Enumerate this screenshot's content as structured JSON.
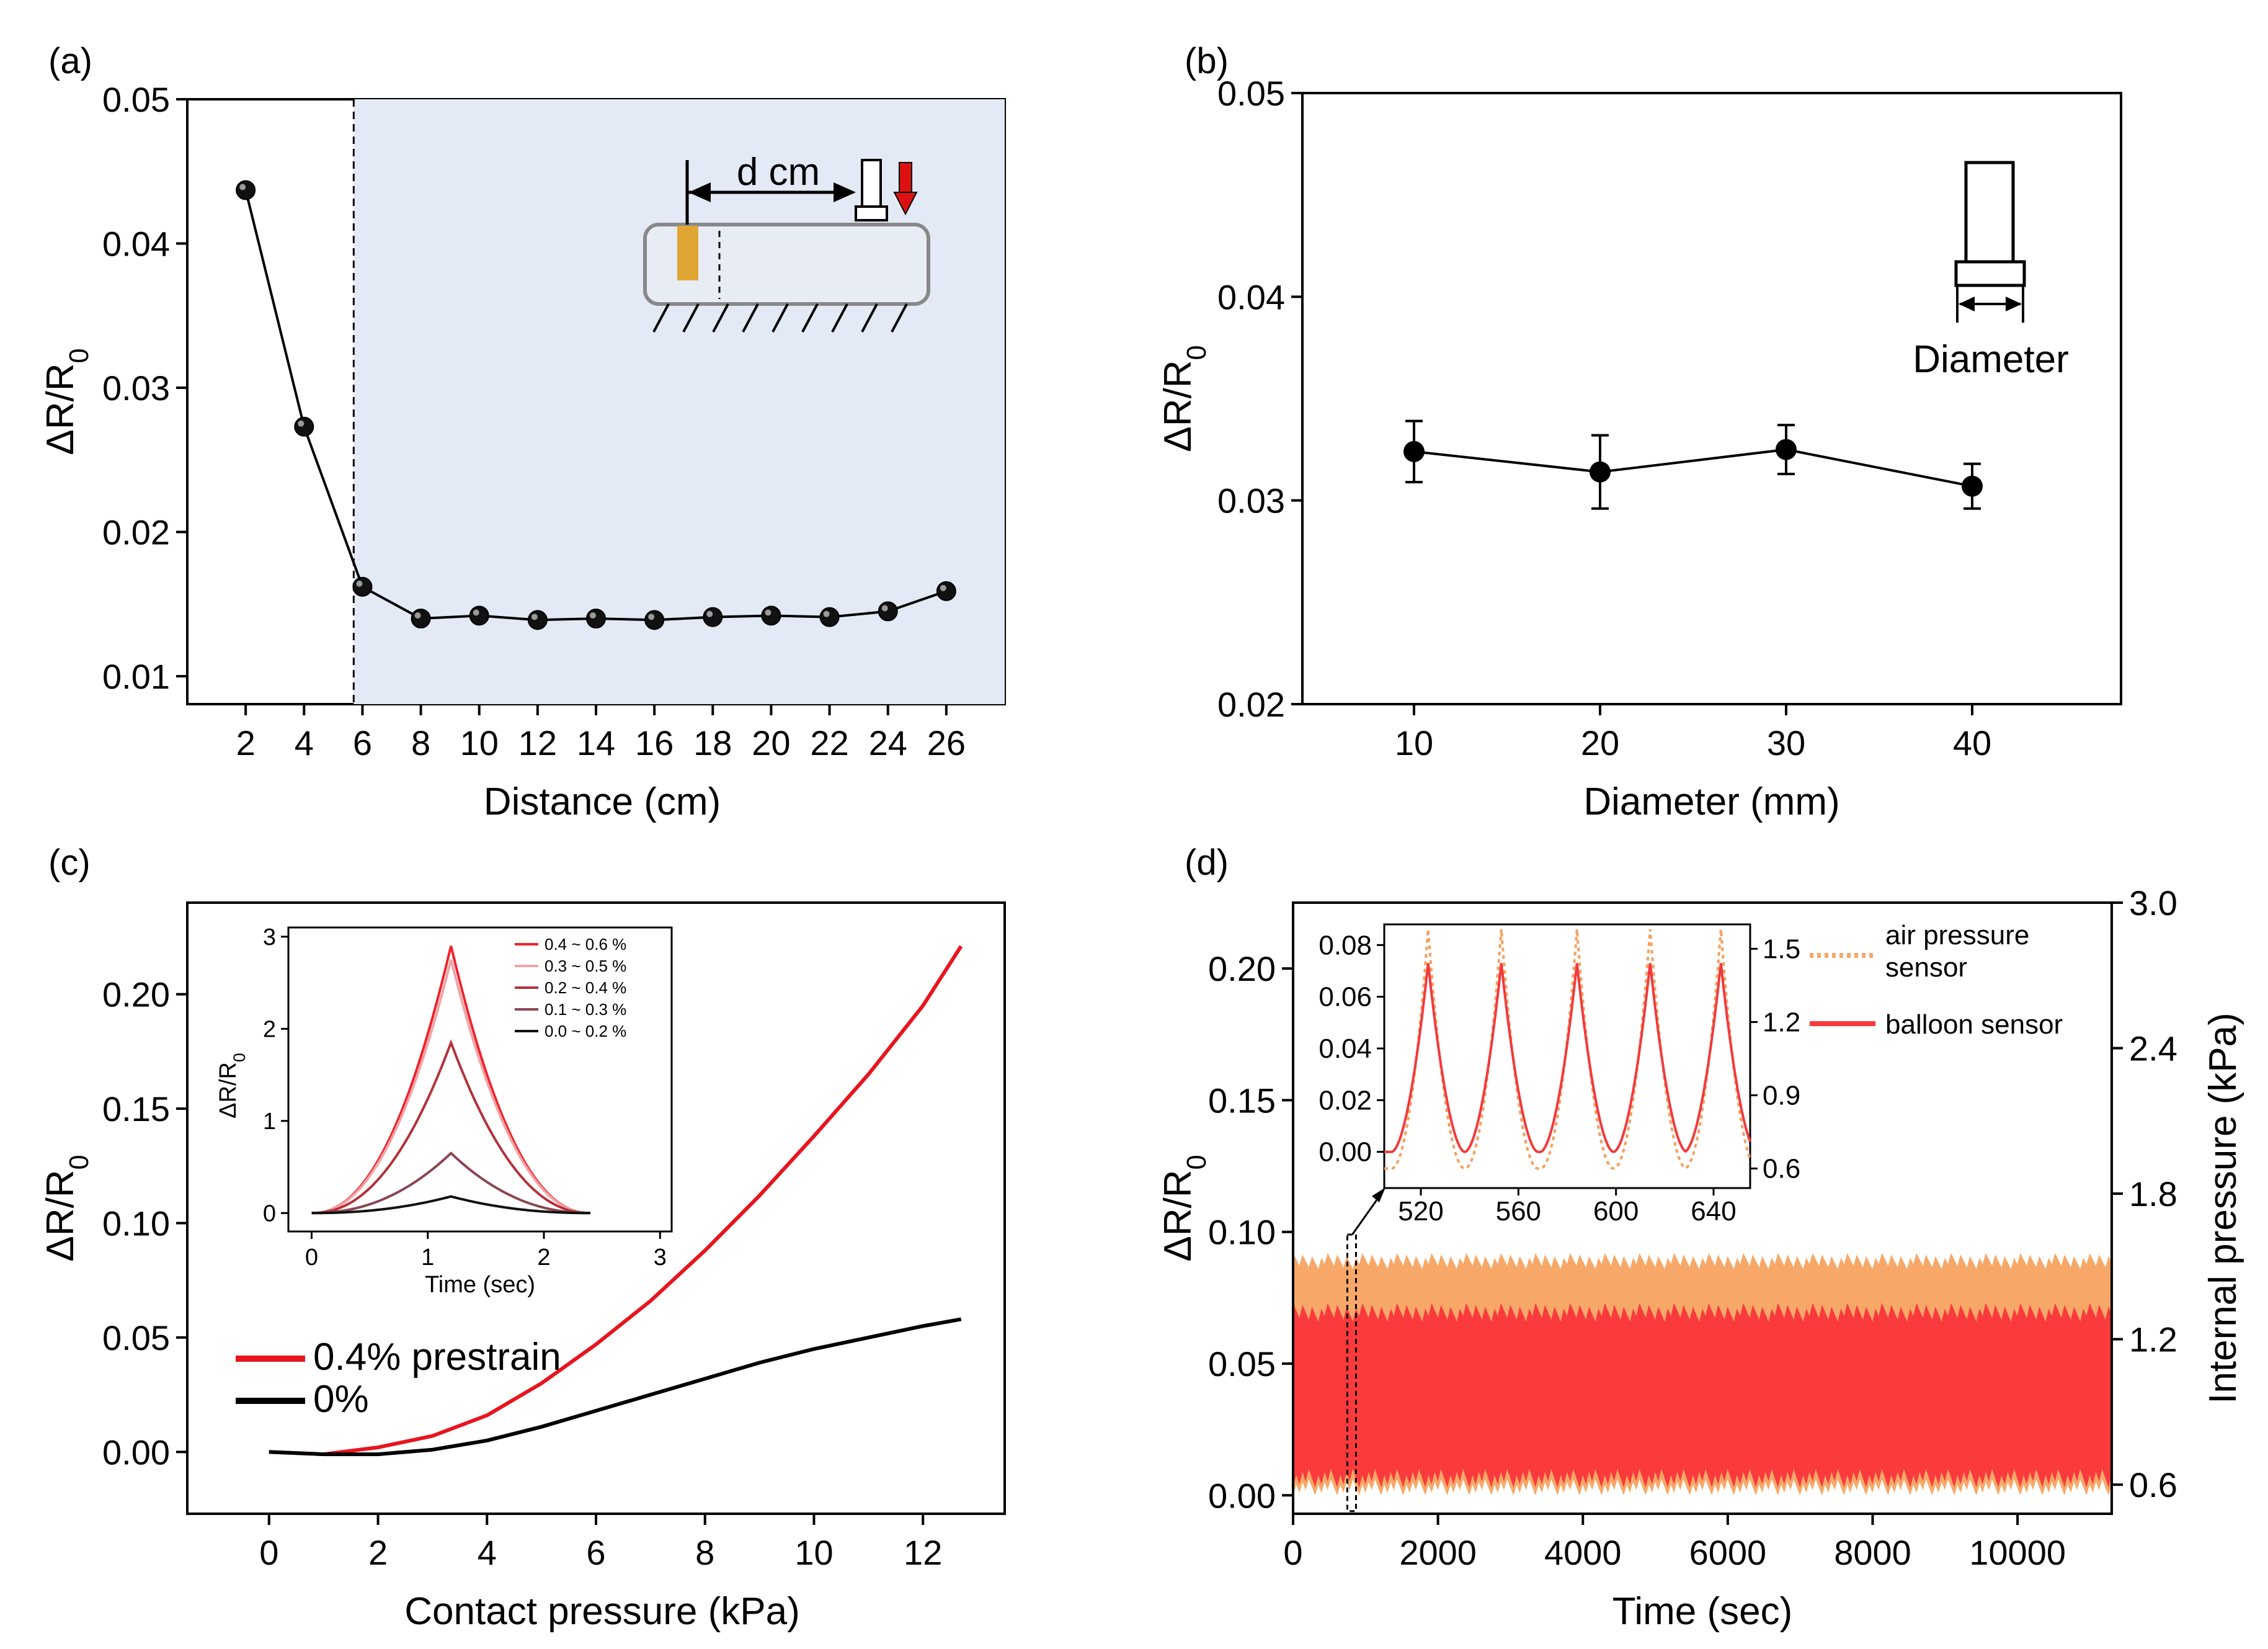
{
  "chart_data": [
    {
      "panel": "(a)",
      "type": "line",
      "title": "",
      "xlabel": "Distance (cm)",
      "ylabel": "ΔR/R0",
      "xlim": [
        0,
        28
      ],
      "ylim": [
        0.01,
        0.05
      ],
      "x_ticks": [
        2,
        4,
        6,
        8,
        10,
        12,
        14,
        16,
        18,
        20,
        22,
        24,
        26
      ],
      "y_ticks": [
        0.01,
        0.02,
        0.03,
        0.04,
        0.05
      ],
      "y_tick_labels": [
        "0.01",
        "0.02",
        "0.03",
        "0.04",
        "0.05"
      ],
      "x": [
        2,
        4,
        6,
        8,
        10,
        12,
        14,
        16,
        18,
        20,
        22,
        24,
        26
      ],
      "values": [
        0.0437,
        0.0273,
        0.0162,
        0.014,
        0.0142,
        0.0139,
        0.014,
        0.0139,
        0.0141,
        0.0142,
        0.0141,
        0.0145,
        0.0159
      ],
      "shaded_from_x": 5.7,
      "inset_label": "d cm",
      "colors": {
        "shade": "#e3e9f5",
        "line": "#000000",
        "sensor": "#e0a634",
        "arrow": "#dd1111"
      }
    },
    {
      "panel": "(b)",
      "type": "line",
      "title": "",
      "xlabel": "Diameter (mm)",
      "ylabel": "ΔR/R0",
      "xlim": [
        4,
        48
      ],
      "ylim": [
        0.02,
        0.05
      ],
      "x_ticks": [
        10,
        20,
        30,
        40
      ],
      "y_ticks": [
        0.02,
        0.03,
        0.04,
        0.05
      ],
      "y_tick_labels": [
        "0.02",
        "0.03",
        "0.04",
        "0.05"
      ],
      "x": [
        10,
        20,
        30,
        40
      ],
      "values": [
        0.0324,
        0.0314,
        0.0325,
        0.0307
      ],
      "errors": [
        0.0015,
        0.0018,
        0.0012,
        0.0011
      ],
      "inset_label": "Diameter"
    },
    {
      "panel": "(c)",
      "type": "line",
      "title": "",
      "xlabel": "Contact pressure (kPa)",
      "ylabel": "ΔR/R0",
      "xlim": [
        -1.5,
        13.5
      ],
      "ylim": [
        -0.027,
        0.24
      ],
      "x_ticks": [
        0,
        2,
        4,
        6,
        8,
        10,
        12
      ],
      "y_ticks": [
        0,
        0.05,
        0.1,
        0.15,
        0.2
      ],
      "y_tick_labels": [
        "0.00",
        "0.05",
        "0.10",
        "0.15",
        "0.20"
      ],
      "x": [
        0,
        1,
        2,
        3,
        4,
        5,
        6,
        7,
        8,
        9,
        10,
        11,
        12,
        12.7
      ],
      "series": [
        {
          "name": "0.4% prestrain",
          "color": "#e8141e",
          "values": [
            0,
            -0.001,
            0.002,
            0.007,
            0.016,
            0.03,
            0.047,
            0.066,
            0.088,
            0.112,
            0.138,
            0.165,
            0.195,
            0.221
          ]
        },
        {
          "name": "0%",
          "color": "#000000",
          "values": [
            0,
            -0.001,
            -0.001,
            0.001,
            0.005,
            0.011,
            0.018,
            0.025,
            0.032,
            0.039,
            0.045,
            0.05,
            0.055,
            0.058
          ]
        }
      ],
      "inset": {
        "xlabel": "Time (sec)",
        "ylabel": "ΔR/R0",
        "xlim": [
          -0.2,
          3.1
        ],
        "ylim": [
          -0.2,
          3.1
        ],
        "x_ticks": [
          0,
          1,
          2,
          3
        ],
        "y_ticks": [
          0,
          1,
          2,
          3
        ],
        "peak_time": 1.2,
        "end_time": 2.4,
        "series": [
          {
            "name": "0.4 ~ 0.6 %",
            "color": "#f0222b",
            "peak": 2.9
          },
          {
            "name": "0.3 ~ 0.5 %",
            "color": "#f2a3a6",
            "peak": 2.75
          },
          {
            "name": "0.2 ~ 0.4 %",
            "color": "#b3323a",
            "peak": 1.85
          },
          {
            "name": "0.1 ~ 0.3 %",
            "color": "#8a4550",
            "peak": 0.65
          },
          {
            "name": "0.0 ~ 0.2 %",
            "color": "#111111",
            "peak": 0.18
          }
        ]
      }
    },
    {
      "panel": "(d)",
      "type": "area",
      "title": "",
      "xlabel": "Time (sec)",
      "ylabel": "ΔR/R0",
      "y2label": "Internal pressure (kPa)",
      "xlim": [
        0,
        11300
      ],
      "ylim": [
        -0.007,
        0.225
      ],
      "y2lim": [
        0.48,
        3.0
      ],
      "x_ticks": [
        0,
        2000,
        4000,
        6000,
        8000,
        10000
      ],
      "y_ticks": [
        0,
        0.05,
        0.1,
        0.15,
        0.2
      ],
      "y_tick_labels": [
        "0.00",
        "0.05",
        "0.10",
        "0.15",
        "0.20"
      ],
      "y2_ticks": [
        0.6,
        1.2,
        1.8,
        2.4,
        3.0
      ],
      "y2_tick_labels": [
        "0.6",
        "1.2",
        "1.8",
        "2.4",
        "3.0"
      ],
      "series": [
        {
          "name": "air pressure sensor",
          "color": "#f7a868",
          "style": "dotted",
          "min": 0.0,
          "max": 0.092
        },
        {
          "name": "balloon sensor",
          "color": "#fa3a3c",
          "style": "solid",
          "min": 0.003,
          "max": 0.073
        }
      ],
      "inset": {
        "xlim": [
          505,
          655
        ],
        "ylim": [
          -0.014,
          0.088
        ],
        "y2lim": [
          0.52,
          1.6
        ],
        "x_ticks": [
          520,
          560,
          600,
          640
        ],
        "y_ticks": [
          0,
          0.02,
          0.04,
          0.06,
          0.08
        ],
        "y_tick_labels": [
          "0.00",
          "0.02",
          "0.04",
          "0.06",
          "0.08"
        ],
        "y2_ticks": [
          0.6,
          0.9,
          1.2,
          1.5
        ],
        "y2_tick_labels": [
          "0.6",
          "0.9",
          "1.2",
          "1.5"
        ],
        "peaks": [
          523,
          553,
          584,
          614,
          643
        ],
        "balloon_peak": 0.073,
        "balloon_min": 0.0,
        "air_peak": 1.58,
        "air_min": 0.6
      }
    }
  ]
}
